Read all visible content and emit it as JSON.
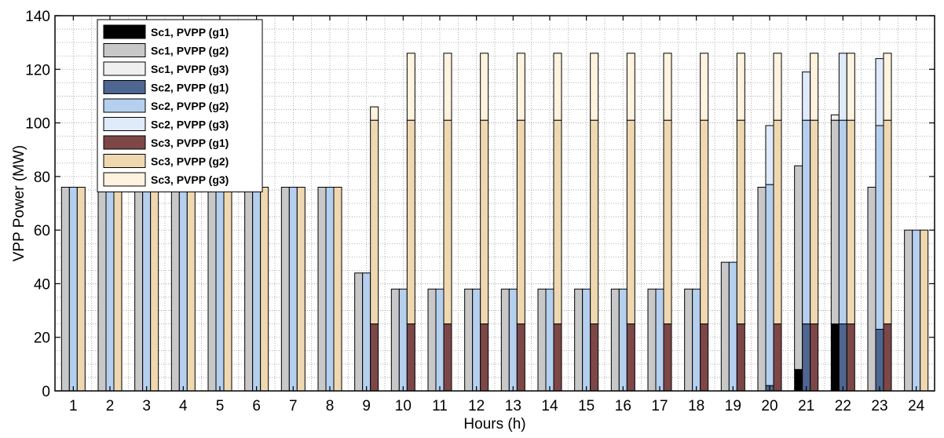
{
  "chart_data": {
    "type": "bar",
    "stacked_within_scenario": true,
    "xlabel": "Hours (h)",
    "ylabel": "VPP Power (MW)",
    "ylim": [
      0,
      140
    ],
    "yticks": [
      0,
      20,
      40,
      60,
      80,
      100,
      120,
      140
    ],
    "grid": "dotted",
    "legend_position": "top-left",
    "categories": [
      "1",
      "2",
      "3",
      "4",
      "5",
      "6",
      "7",
      "8",
      "9",
      "10",
      "11",
      "12",
      "13",
      "14",
      "15",
      "16",
      "17",
      "18",
      "19",
      "20",
      "21",
      "22",
      "23",
      "24"
    ],
    "scenarios": [
      {
        "name": "Sc1",
        "series": [
          {
            "name": "Sc1, PVPP (g1)",
            "color": "#000000",
            "values": [
              0,
              0,
              0,
              0,
              0,
              0,
              0,
              0,
              0,
              0,
              0,
              0,
              0,
              0,
              0,
              0,
              0,
              0,
              0,
              0,
              8,
              25,
              0,
              0
            ]
          },
          {
            "name": "Sc1, PVPP (g2)",
            "color": "#c8c8c8",
            "values": [
              76,
              76,
              76,
              76,
              76,
              76,
              76,
              76,
              44,
              38,
              38,
              38,
              38,
              38,
              38,
              38,
              38,
              38,
              48,
              76,
              76,
              76,
              76,
              60
            ]
          },
          {
            "name": "Sc1, PVPP (g3)",
            "color": "#efefef",
            "values": [
              0,
              0,
              0,
              0,
              0,
              0,
              0,
              0,
              0,
              0,
              0,
              0,
              0,
              0,
              0,
              0,
              0,
              0,
              0,
              0,
              0,
              2,
              0,
              0
            ]
          }
        ]
      },
      {
        "name": "Sc2",
        "series": [
          {
            "name": "Sc2, PVPP (g1)",
            "color": "#4e6691",
            "values": [
              0,
              0,
              0,
              0,
              0,
              0,
              0,
              0,
              0,
              0,
              0,
              0,
              0,
              0,
              0,
              0,
              0,
              0,
              0,
              2,
              25,
              25,
              23,
              0
            ]
          },
          {
            "name": "Sc2, PVPP (g2)",
            "color": "#b5cfee",
            "values": [
              76,
              76,
              76,
              76,
              76,
              76,
              76,
              76,
              44,
              38,
              38,
              38,
              38,
              38,
              38,
              38,
              38,
              38,
              48,
              75,
              76,
              76,
              76,
              60
            ]
          },
          {
            "name": "Sc2, PVPP (g3)",
            "color": "#dfeafa",
            "values": [
              0,
              0,
              0,
              0,
              0,
              0,
              0,
              0,
              0,
              0,
              0,
              0,
              0,
              0,
              0,
              0,
              0,
              0,
              0,
              22,
              18,
              25,
              25,
              0
            ]
          }
        ]
      },
      {
        "name": "Sc3",
        "series": [
          {
            "name": "Sc3, PVPP (g1)",
            "color": "#7d4747",
            "values": [
              0,
              0,
              0,
              0,
              0,
              0,
              0,
              0,
              25,
              25,
              25,
              25,
              25,
              25,
              25,
              25,
              25,
              25,
              25,
              25,
              25,
              25,
              25,
              0
            ]
          },
          {
            "name": "Sc3, PVPP (g2)",
            "color": "#efd8b0",
            "values": [
              76,
              76,
              76,
              76,
              76,
              76,
              76,
              76,
              76,
              76,
              76,
              76,
              76,
              76,
              76,
              76,
              76,
              76,
              76,
              76,
              76,
              76,
              76,
              60
            ]
          },
          {
            "name": "Sc3, PVPP (g3)",
            "color": "#fff2de",
            "values": [
              0,
              0,
              0,
              0,
              0,
              0,
              0,
              0,
              5,
              25,
              25,
              25,
              25,
              25,
              25,
              25,
              25,
              25,
              25,
              25,
              25,
              25,
              25,
              0
            ]
          }
        ]
      }
    ]
  }
}
